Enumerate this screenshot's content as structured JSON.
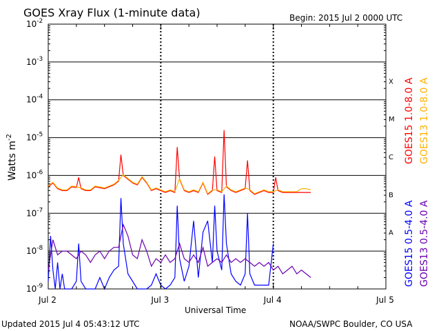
{
  "header": {
    "title": "GOES Xray Flux (1-minute data)",
    "begin": "Begin:  2015 Jul 2 0000 UTC"
  },
  "footer": {
    "updated": "Updated 2015 Jul  4 05:43:12 UTC",
    "credit": "NOAA/SWPC Boulder, CO USA"
  },
  "chart_data": {
    "type": "line",
    "title": "GOES Xray Flux (1-minute data)",
    "xlabel": "Universal Time",
    "ylabel": "Watts m",
    "ylabel_sup": "-2",
    "xlim_hours": [
      0,
      72
    ],
    "ylim_log10": [
      -9,
      -2
    ],
    "y_scale": "log",
    "y_ticks": [
      {
        "exp": -2,
        "base": "10",
        "sup": "-2"
      },
      {
        "exp": -3,
        "base": "10",
        "sup": "-3"
      },
      {
        "exp": -4,
        "base": "10",
        "sup": "-4"
      },
      {
        "exp": -5,
        "base": "10",
        "sup": "-5"
      },
      {
        "exp": -6,
        "base": "10",
        "sup": "-6"
      },
      {
        "exp": -7,
        "base": "10",
        "sup": "-7"
      },
      {
        "exp": -8,
        "base": "10",
        "sup": "-8"
      },
      {
        "exp": -9,
        "base": "10",
        "sup": "-9"
      }
    ],
    "x_ticks": [
      {
        "hour": 0,
        "label": "Jul 2"
      },
      {
        "hour": 24,
        "label": "Jul 3"
      },
      {
        "hour": 48,
        "label": "Jul 4"
      },
      {
        "hour": 72,
        "label": "Jul 5"
      }
    ],
    "flare_classes": [
      {
        "label": "X",
        "exp": -3.5
      },
      {
        "label": "M",
        "exp": -4.5
      },
      {
        "label": "C",
        "exp": -5.5
      },
      {
        "label": "B",
        "exp": -6.5
      },
      {
        "label": "A",
        "exp": -7.5
      }
    ],
    "legend_position": "right",
    "series": [
      {
        "name": "GOES15 1.0-8.0 A",
        "color": "#ff0000",
        "x": [
          0,
          1,
          2,
          3,
          4,
          5,
          6,
          6.5,
          7,
          8,
          9,
          10,
          12,
          14,
          15,
          15.5,
          16,
          17,
          18,
          19,
          20,
          21,
          22,
          23,
          24,
          25,
          26,
          27,
          27.5,
          28,
          29,
          30,
          31,
          32,
          33,
          34,
          35,
          35.5,
          36,
          37,
          37.5,
          38,
          39,
          40,
          41,
          42,
          42.5,
          43,
          44,
          45,
          46,
          47,
          48,
          48.5,
          49,
          50,
          51,
          52,
          53,
          53.5,
          54,
          55,
          56
        ],
        "log10": [
          -6.3,
          -6.2,
          -6.35,
          -6.4,
          -6.4,
          -6.3,
          -6.32,
          -6.05,
          -6.35,
          -6.4,
          -6.4,
          -6.3,
          -6.35,
          -6.25,
          -6.15,
          -5.45,
          -6.0,
          -6.1,
          -6.2,
          -6.25,
          -6.05,
          -6.2,
          -6.4,
          -6.35,
          -6.4,
          -6.45,
          -6.4,
          -6.45,
          -5.25,
          -6.1,
          -6.4,
          -6.45,
          -6.4,
          -6.45,
          -6.2,
          -6.5,
          -6.4,
          -5.5,
          -6.4,
          -6.45,
          -4.8,
          -6.3,
          -6.4,
          -6.45,
          -6.4,
          -6.35,
          -5.6,
          -6.4,
          -6.5,
          -6.45,
          -6.4,
          -6.45,
          -6.45,
          -6.05,
          -6.4,
          -6.45,
          -6.45,
          -6.45,
          -6.45,
          -6.45,
          -6.45,
          -6.45,
          -6.45
        ]
      },
      {
        "name": "GOES13 1.0-8.0 A",
        "color": "#ffb000",
        "x": [
          0,
          1,
          2,
          3,
          4,
          5,
          6,
          7,
          8,
          9,
          10,
          12,
          14,
          15,
          16,
          17,
          18,
          19,
          20,
          21,
          22,
          23,
          24,
          25,
          26,
          27,
          28,
          29,
          30,
          31,
          32,
          33,
          34,
          35,
          36,
          37,
          38,
          39,
          40,
          41,
          42,
          43,
          44,
          45,
          46,
          47,
          48,
          49,
          50,
          51,
          52,
          53,
          54,
          55,
          56
        ],
        "log10": [
          -6.28,
          -6.18,
          -6.33,
          -6.38,
          -6.38,
          -6.28,
          -6.3,
          -6.33,
          -6.38,
          -6.38,
          -6.28,
          -6.33,
          -6.23,
          -6.13,
          -5.98,
          -6.08,
          -6.18,
          -6.23,
          -6.03,
          -6.18,
          -6.38,
          -6.33,
          -6.38,
          -6.43,
          -6.38,
          -6.43,
          -6.08,
          -6.38,
          -6.43,
          -6.38,
          -6.43,
          -6.18,
          -6.48,
          -6.38,
          -6.38,
          -6.43,
          -6.28,
          -6.38,
          -6.43,
          -6.38,
          -6.33,
          -6.38,
          -6.48,
          -6.43,
          -6.38,
          -6.43,
          -6.43,
          -6.38,
          -6.43,
          -6.43,
          -6.43,
          -6.43,
          -6.35,
          -6.35,
          -6.38
        ]
      },
      {
        "name": "GOES15 0.5-4.0 A",
        "color": "#0000ff",
        "x": [
          0,
          0.5,
          1,
          1.5,
          2,
          2.5,
          3,
          3.5,
          4,
          5,
          6,
          6.5,
          7,
          8,
          9,
          10,
          11,
          12,
          13,
          14,
          15,
          15.5,
          16,
          17,
          18,
          19,
          20,
          21,
          22,
          23,
          24,
          25,
          26,
          27,
          27.5,
          28,
          29,
          30,
          31,
          32,
          33,
          34,
          35,
          35.5,
          36,
          37,
          37.5,
          38,
          39,
          40,
          41,
          42,
          42.5,
          43,
          44,
          45,
          46,
          47,
          48
        ],
        "log10": [
          -8.8,
          -7.6,
          -8.5,
          -9.0,
          -8.3,
          -9.0,
          -8.6,
          -9.0,
          -9.0,
          -9.0,
          -8.8,
          -7.8,
          -8.8,
          -9.0,
          -9.0,
          -9.0,
          -8.7,
          -9.0,
          -8.7,
          -8.5,
          -8.4,
          -6.6,
          -7.8,
          -8.6,
          -8.8,
          -9.0,
          -9.0,
          -9.0,
          -8.9,
          -8.6,
          -8.9,
          -9.0,
          -8.9,
          -8.7,
          -6.8,
          -8.2,
          -8.8,
          -8.4,
          -7.2,
          -8.7,
          -7.5,
          -7.2,
          -8.3,
          -6.8,
          -8.0,
          -8.5,
          -6.5,
          -7.8,
          -8.6,
          -8.8,
          -8.9,
          -8.6,
          -7.0,
          -8.6,
          -8.9,
          -8.9,
          -8.9,
          -8.9,
          -7.8
        ]
      },
      {
        "name": "GOES13 0.5-4.0 A",
        "color": "#6a00b0",
        "x": [
          0,
          1,
          2,
          3,
          4,
          5,
          6,
          7,
          8,
          9,
          10,
          11,
          12,
          13,
          14,
          15,
          16,
          17,
          18,
          19,
          20,
          21,
          22,
          23,
          24,
          25,
          26,
          27,
          28,
          29,
          30,
          31,
          32,
          33,
          34,
          35,
          36,
          37,
          38,
          39,
          40,
          41,
          42,
          43,
          44,
          45,
          46,
          47,
          48,
          49,
          50,
          51,
          52,
          53,
          54,
          55,
          56
        ],
        "log10": [
          -8.5,
          -7.7,
          -8.1,
          -8.0,
          -8.0,
          -8.1,
          -8.2,
          -8.0,
          -8.1,
          -8.3,
          -8.1,
          -8.0,
          -8.2,
          -8.0,
          -7.9,
          -7.9,
          -7.3,
          -7.6,
          -8.1,
          -8.2,
          -7.7,
          -8.0,
          -8.4,
          -8.2,
          -8.3,
          -8.1,
          -8.3,
          -8.2,
          -7.8,
          -8.2,
          -8.3,
          -8.1,
          -8.3,
          -7.9,
          -8.4,
          -8.3,
          -8.2,
          -8.3,
          -8.1,
          -8.3,
          -8.2,
          -8.3,
          -8.2,
          -8.3,
          -8.4,
          -8.3,
          -8.4,
          -8.3,
          -8.5,
          -8.4,
          -8.6,
          -8.5,
          -8.4,
          -8.6,
          -8.5,
          -8.6,
          -8.7
        ]
      }
    ]
  }
}
